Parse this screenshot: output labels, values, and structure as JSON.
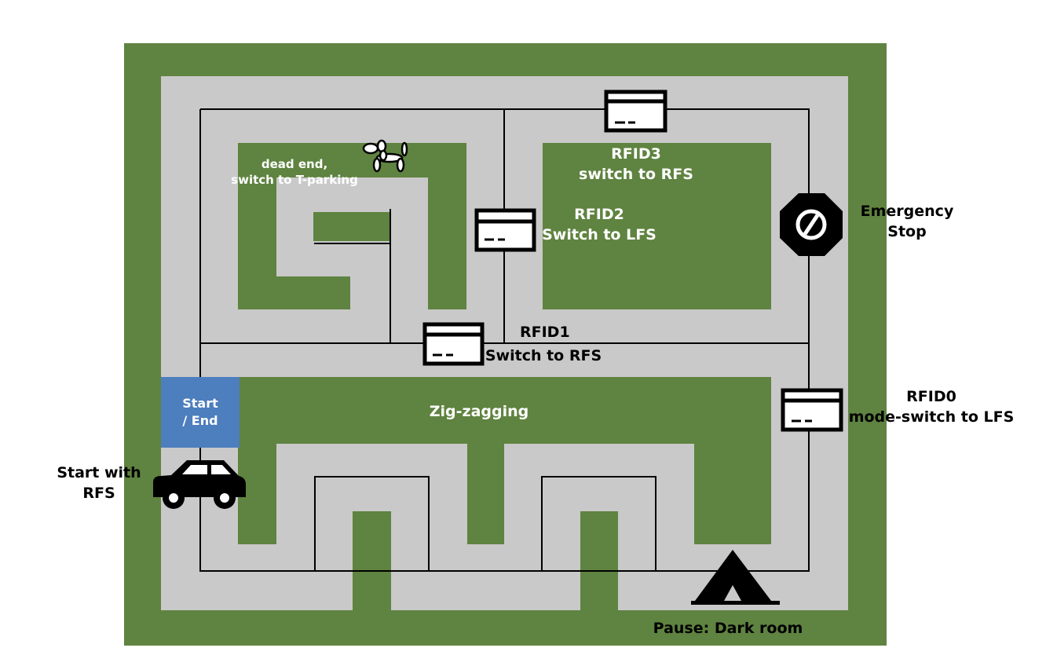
{
  "labels": {
    "dead_end": "dead end,",
    "dead_end_sub": "switch to T-parking",
    "rfid3": "RFID3",
    "rfid3_action": "switch to RFS",
    "rfid2": "RFID2",
    "rfid2_action": "Switch to LFS",
    "emergency": "Emergency",
    "emergency_sub": "Stop",
    "rfid1": "RFID1",
    "rfid1_action": "Switch to RFS",
    "rfid0": "RFID0",
    "rfid0_action": "mode-switch to LFS",
    "start_end_line1": "Start",
    "start_end_line2": "/ End",
    "zigzag": "Zig-zagging",
    "start_with": "Start with",
    "start_with_sub": "RFS",
    "pause": "Pause: Dark room"
  },
  "colors": {
    "grass": "#5f8340",
    "track": "#c9c9c9",
    "line": "#000000",
    "start_box": "#4d7ebd"
  },
  "icons": [
    "rfid-card-icon",
    "balloon-dog-icon",
    "stop-sign-icon",
    "car-icon",
    "tent-icon"
  ]
}
